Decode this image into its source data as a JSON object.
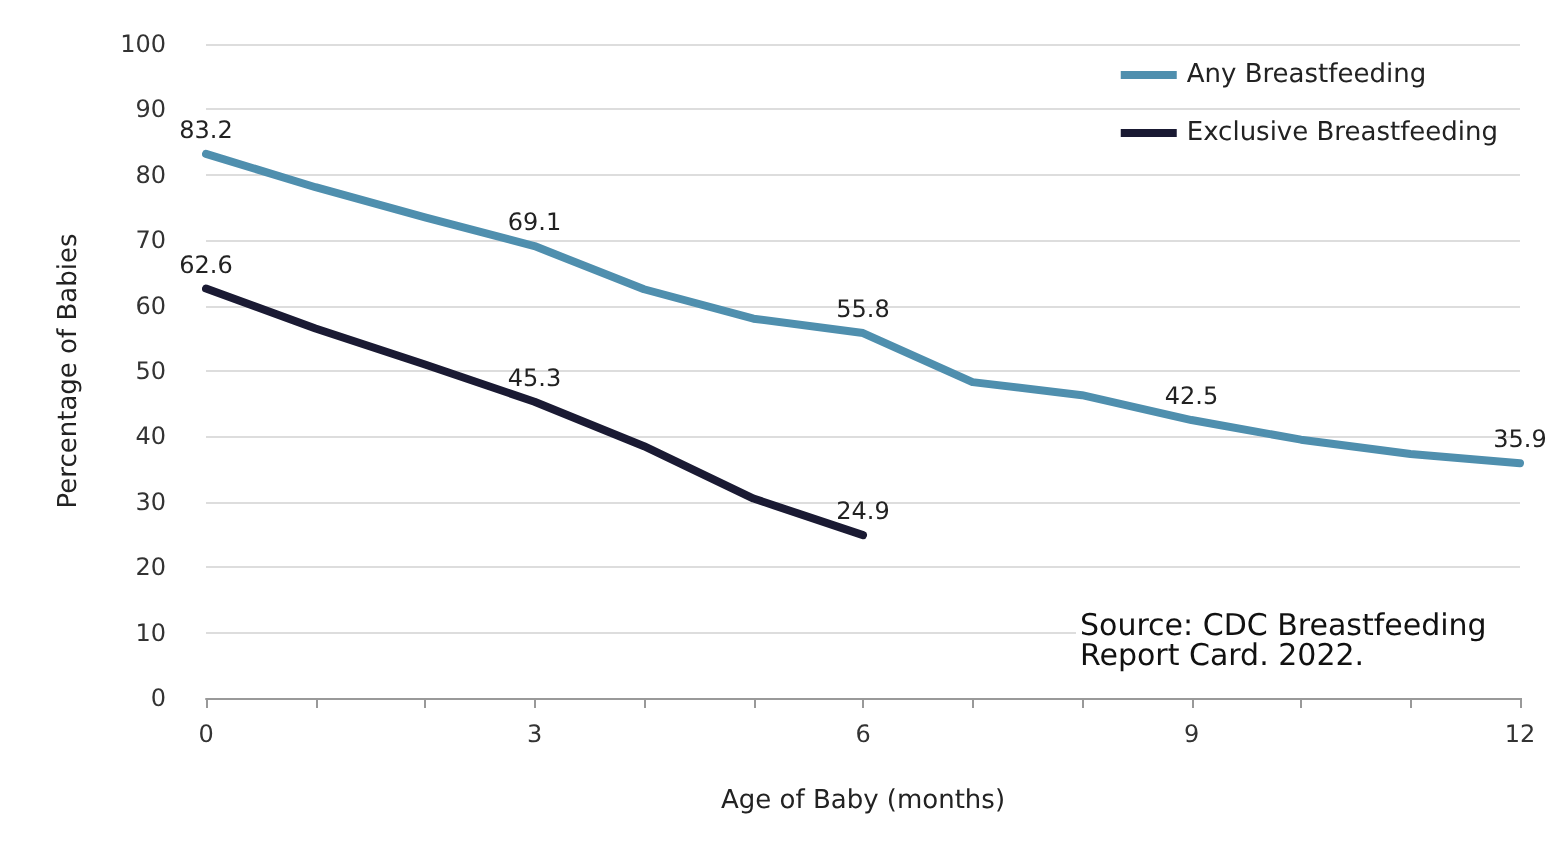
{
  "chart_data": {
    "type": "line",
    "xlabel": "Age of Baby (months)",
    "ylabel": "Percentage of Babies",
    "xlim": [
      0,
      12
    ],
    "ylim": [
      0,
      100
    ],
    "xticks": [
      0,
      {
        "value": 1,
        "label": null
      },
      {
        "value": 2,
        "label": null
      },
      3,
      {
        "value": 4,
        "label": null
      },
      {
        "value": 5,
        "label": null
      },
      6,
      {
        "value": 7,
        "label": null
      },
      {
        "value": 8,
        "label": null
      },
      9,
      {
        "value": 10,
        "label": null
      },
      {
        "value": 11,
        "label": null
      },
      12
    ],
    "yticks": [
      0,
      10,
      20,
      30,
      40,
      50,
      60,
      70,
      80,
      90,
      100
    ],
    "grid": "y",
    "legend": "top right",
    "marker": "none",
    "line_style": "solid",
    "annotations": [
      "Source: CDC Breastfeeding Report Card. 2022."
    ],
    "series": [
      {
        "name": "Any Breastfeeding",
        "color": "#4f8fae",
        "x": [
          0,
          1,
          2,
          3,
          4,
          5,
          6,
          7,
          8,
          9,
          10,
          11,
          12
        ],
        "values": [
          83.2,
          78.1,
          73.5,
          69.1,
          62.5,
          58,
          55.8,
          48.3,
          46.3,
          42.5,
          39.5,
          37.3,
          35.9
        ],
        "value_labels": [
          "83.2",
          null,
          null,
          "69.1",
          null,
          null,
          "55.8",
          null,
          null,
          "42.5",
          null,
          null,
          "35.9"
        ]
      },
      {
        "name": "Exclusive Breastfeeding",
        "color": "#1a1a33",
        "x": [
          0,
          1,
          2,
          3,
          4,
          5,
          6
        ],
        "values": [
          62.6,
          56.5,
          51,
          45.3,
          38.5,
          30.5,
          24.9
        ],
        "value_labels": [
          "62.6",
          null,
          null,
          "45.3",
          null,
          null,
          "24.9"
        ]
      }
    ]
  }
}
